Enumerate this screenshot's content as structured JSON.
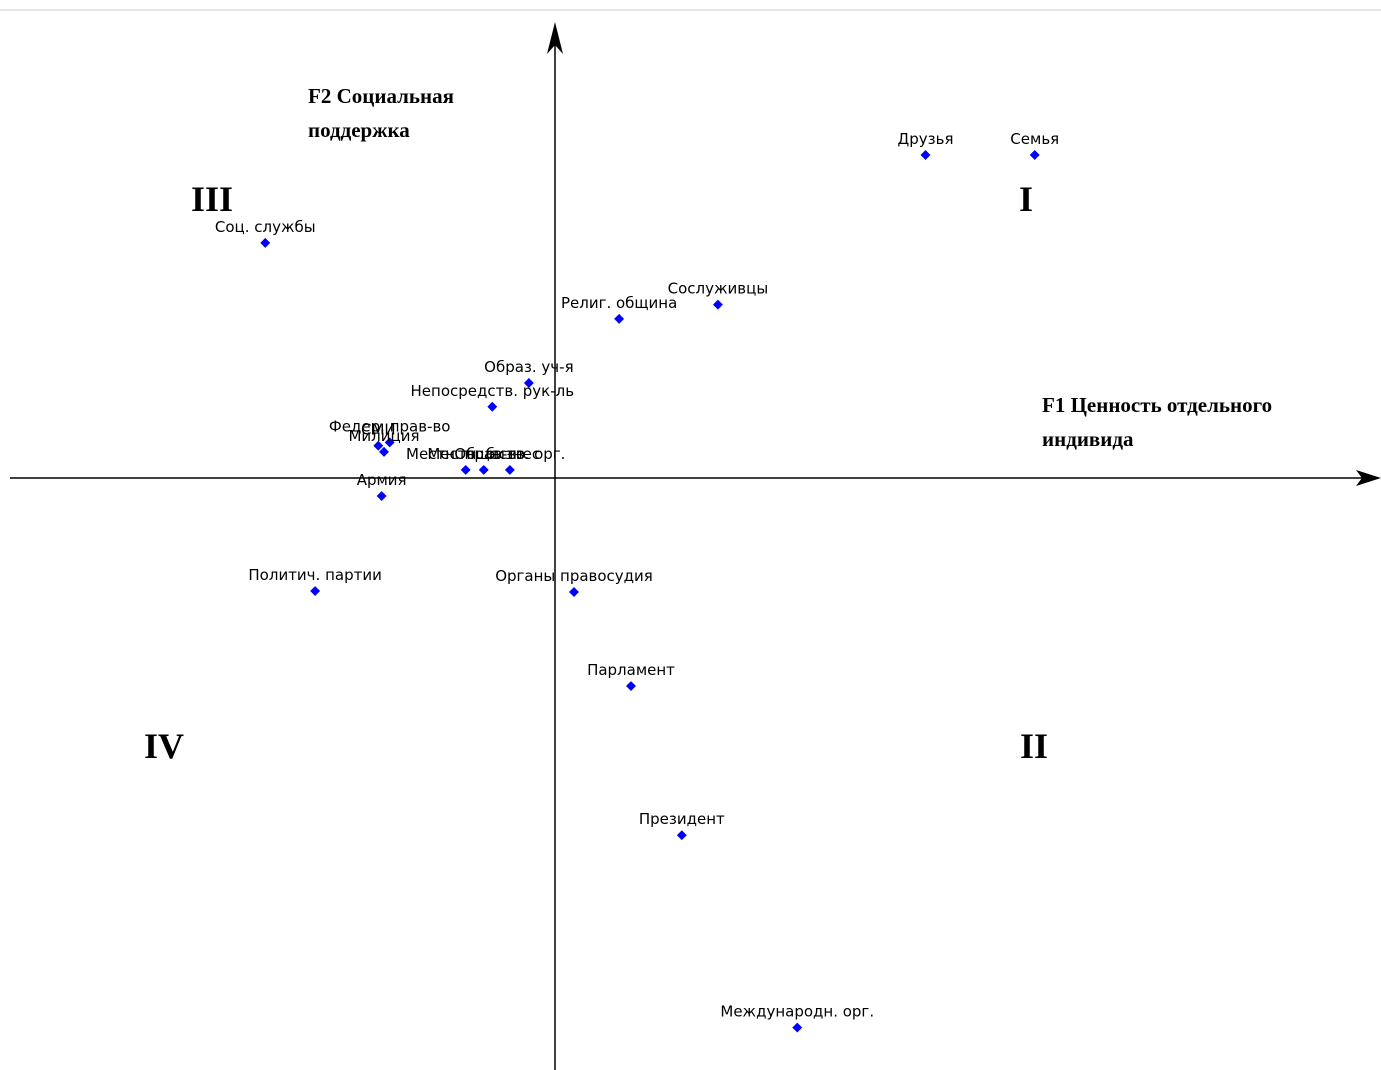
{
  "chart_data": {
    "type": "scatter",
    "x_axis_title": [
      "F1 Ценность отдельного",
      "индивида"
    ],
    "y_axis_title": [
      "F2 Социальная",
      "поддержка"
    ],
    "quadrants": [
      "I",
      "II",
      "III",
      "IV"
    ],
    "point_color": "#0000ff",
    "axis_color": "#000000",
    "grid": false,
    "points": [
      {
        "label": "Друзья",
        "x": 0.78,
        "y": 0.68
      },
      {
        "label": "Семья",
        "x": 1.01,
        "y": 0.68
      },
      {
        "label": "Соц. службы",
        "x": -0.61,
        "y": 0.495
      },
      {
        "label": "Сослуживцы",
        "x": 0.343,
        "y": 0.365
      },
      {
        "label": "Религ. община",
        "x": 0.135,
        "y": 0.335
      },
      {
        "label": "Образ. уч-я",
        "x": -0.055,
        "y": 0.2
      },
      {
        "label": "Непосредств. рук-ль",
        "x": -0.132,
        "y": 0.15
      },
      {
        "label": "Федер. прав-во",
        "x": -0.348,
        "y": 0.075
      },
      {
        "label": "СМИ",
        "x": -0.372,
        "y": 0.068
      },
      {
        "label": "Милиция",
        "x": -0.36,
        "y": 0.055
      },
      {
        "label": "Местн. прав-во",
        "x": -0.188,
        "y": 0.017
      },
      {
        "label": "Местн. бизнес",
        "x": -0.15,
        "y": 0.017
      },
      {
        "label": "Обществ. орг.",
        "x": -0.095,
        "y": 0.017
      },
      {
        "label": "Армия",
        "x": -0.365,
        "y": -0.038
      },
      {
        "label": "Политич. партии",
        "x": -0.505,
        "y": -0.238
      },
      {
        "label": "Органы правосудия",
        "x": 0.04,
        "y": -0.24
      },
      {
        "label": "Парламент",
        "x": 0.16,
        "y": -0.438
      },
      {
        "label": "Президент",
        "x": 0.267,
        "y": -0.752
      },
      {
        "label": "Международн. орг.",
        "x": 0.51,
        "y": -1.157
      }
    ]
  }
}
